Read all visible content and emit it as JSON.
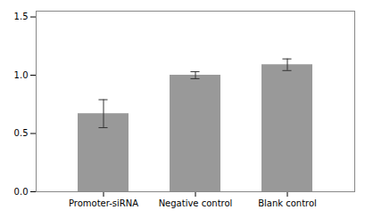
{
  "chart_data": {
    "type": "bar",
    "categories": [
      "Promoter-siRNA",
      "Negative control",
      "Blank control"
    ],
    "values": [
      0.67,
      1.0,
      1.09
    ],
    "errors": [
      0.12,
      0.03,
      0.05
    ],
    "color": "#999999",
    "ylim": [
      0,
      1.55
    ],
    "yticks": [
      {
        "value": 0,
        "label": "0.0"
      },
      0.5,
      {
        "value": 1.0,
        "label": "1.0"
      },
      1.5
    ],
    "grid": false
  }
}
